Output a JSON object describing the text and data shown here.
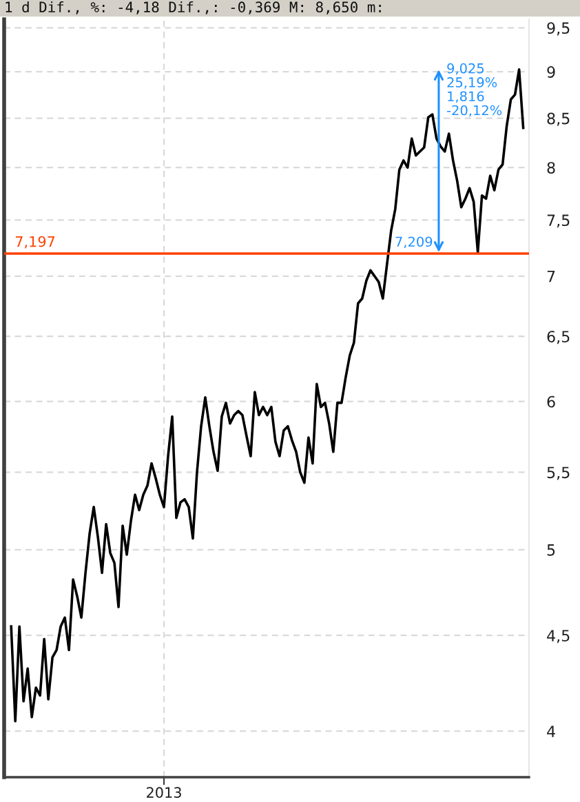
{
  "chart_data": {
    "type": "line",
    "title": "1 d Dif., %: -4,18 Dif.,: -0,369 M: 8,650 m:",
    "categories": [
      null,
      null,
      null,
      null,
      null,
      null,
      null,
      null,
      null,
      null,
      null,
      null,
      null,
      null,
      null,
      null,
      null,
      null,
      null,
      null,
      null,
      null,
      null,
      null,
      null,
      null,
      null,
      null,
      null,
      null,
      null,
      null,
      null,
      null,
      null,
      null,
      null,
      "2013",
      null,
      null,
      null,
      null,
      null,
      null,
      null,
      null,
      null,
      null,
      null,
      null,
      null,
      null,
      null,
      null,
      null,
      null,
      null,
      null,
      null,
      null,
      null,
      null,
      null,
      null,
      null,
      null,
      null,
      null,
      null,
      null,
      null,
      null,
      null,
      null,
      null,
      null,
      null,
      null,
      null,
      null,
      null,
      null,
      null,
      null,
      null,
      null,
      null,
      null,
      null,
      null,
      null,
      null,
      null,
      null,
      null,
      null,
      null,
      null,
      null,
      null,
      null,
      null,
      null,
      null,
      null,
      null,
      null,
      null,
      null,
      null,
      null,
      null,
      null,
      null,
      null,
      null,
      null,
      null,
      null,
      null,
      null,
      null,
      null,
      null,
      null
    ],
    "series": [
      {
        "color": "#000000",
        "values": [
          4.55,
          4.05,
          4.55,
          4.15,
          4.32,
          4.07,
          4.22,
          4.18,
          4.48,
          4.16,
          4.38,
          4.42,
          4.55,
          4.6,
          4.42,
          4.82,
          4.72,
          4.6,
          4.86,
          5.1,
          5.27,
          5.08,
          4.86,
          5.16,
          4.98,
          4.92,
          4.66,
          5.15,
          4.97,
          5.18,
          5.35,
          5.25,
          5.35,
          5.41,
          5.56,
          5.46,
          5.35,
          5.27,
          5.61,
          5.89,
          5.2,
          5.3,
          5.32,
          5.27,
          5.07,
          5.5,
          5.82,
          6.03,
          5.82,
          5.64,
          5.51,
          5.89,
          5.99,
          5.84,
          5.9,
          5.93,
          5.9,
          5.75,
          5.61,
          6.07,
          5.9,
          5.96,
          5.9,
          5.96,
          5.71,
          5.61,
          5.79,
          5.82,
          5.72,
          5.64,
          5.5,
          5.43,
          5.74,
          5.56,
          6.13,
          5.96,
          5.99,
          5.84,
          5.64,
          5.99,
          5.99,
          6.18,
          6.35,
          6.45,
          6.77,
          6.81,
          6.96,
          7.05,
          7.0,
          6.95,
          6.81,
          7.1,
          7.4,
          7.6,
          7.98,
          8.07,
          8.0,
          8.29,
          8.12,
          8.16,
          8.2,
          8.51,
          8.54,
          8.29,
          8.21,
          8.16,
          8.34,
          8.07,
          7.87,
          7.62,
          7.7,
          7.8,
          7.67,
          7.209,
          7.73,
          7.7,
          7.92,
          7.78,
          7.98,
          8.03,
          8.42,
          8.7,
          8.75,
          9.025,
          8.4
        ]
      }
    ],
    "log": "y",
    "ylim": [
      3.78,
      9.6
    ],
    "yticks": [
      4,
      {
        "value": 4.5,
        "label": "4,5"
      },
      5,
      {
        "value": 5.5,
        "label": "5,5"
      },
      6,
      {
        "value": 6.5,
        "label": "6,5"
      },
      7,
      {
        "value": 7.5,
        "label": "7,5"
      },
      8,
      {
        "value": 8.5,
        "label": "8,5"
      },
      9,
      {
        "value": 9.5,
        "label": "9,5"
      }
    ],
    "grid": true,
    "ref_lines": [
      {
        "axis": "y",
        "value": 7.197,
        "label": "7,197",
        "color": "#ff4000"
      }
    ],
    "annotations": [
      "9,025",
      "25,19%",
      "1,816",
      "-20,12%",
      "7,209"
    ]
  }
}
